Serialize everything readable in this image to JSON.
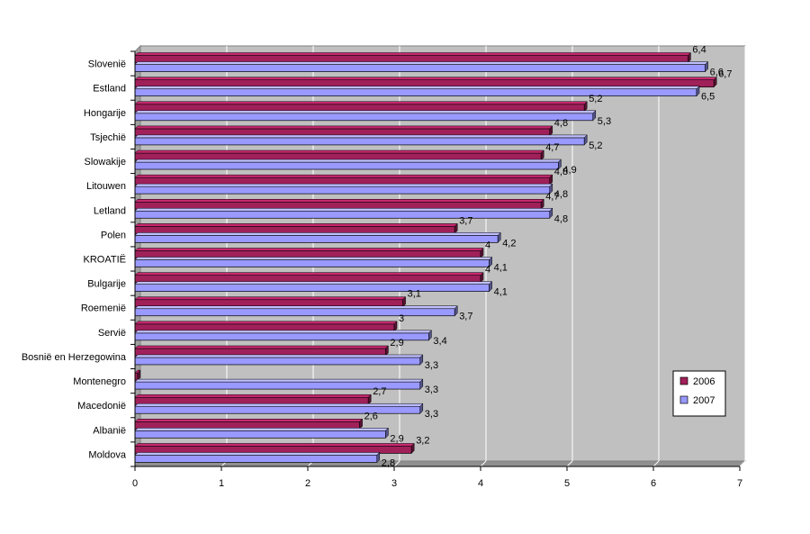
{
  "chart_data": {
    "type": "bar",
    "orientation": "horizontal",
    "style": "3d",
    "categories": [
      "Sloveniё",
      "Estland",
      "Hongarije",
      "Tsjechiё",
      "Slowakije",
      "Litouwen",
      "Letland",
      "Polen",
      "KROATIЁ",
      "Bulgarije",
      "Roemeniё",
      "Serviё",
      "Bosniё en Herzegowina",
      "Montenegro",
      "Macedoniё",
      "Albaniё",
      "Moldova"
    ],
    "series": [
      {
        "name": "2006",
        "color": "#a0205a",
        "values": [
          6.4,
          6.7,
          5.2,
          4.8,
          4.7,
          4.8,
          4.7,
          3.7,
          4,
          4,
          3.1,
          3,
          2.9,
          null,
          2.7,
          2.6,
          3.2
        ],
        "labels": [
          "6,4",
          "6,7",
          "5,2",
          "4,8",
          "4,7",
          "4,8",
          "4,7",
          "3,7",
          "4",
          "4",
          "3,1",
          "3",
          "2,9",
          "",
          "2,7",
          "2,6",
          "3,2"
        ]
      },
      {
        "name": "2007",
        "color": "#9999ff",
        "values": [
          6.6,
          6.5,
          5.3,
          5.2,
          4.9,
          4.8,
          4.8,
          4.2,
          4.1,
          4.1,
          3.7,
          3.4,
          3.3,
          3.3,
          3.3,
          2.9,
          2.8
        ],
        "labels": [
          "6,6",
          "6,5",
          "5,3",
          "5,2",
          "4,9",
          "4,8",
          "4,8",
          "4,2",
          "4,1",
          "4,1",
          "3,7",
          "3,4",
          "3,3",
          "3,3",
          "3,3",
          "2,9",
          "2,8"
        ]
      }
    ],
    "xlim": [
      0,
      7
    ],
    "xticks": [
      "0",
      "1",
      "2",
      "3",
      "4",
      "5",
      "6",
      "7"
    ],
    "grid": true,
    "legend_position": "right",
    "title": "",
    "xlabel": "",
    "ylabel": "",
    "plot_background": "#c0c0c0"
  }
}
